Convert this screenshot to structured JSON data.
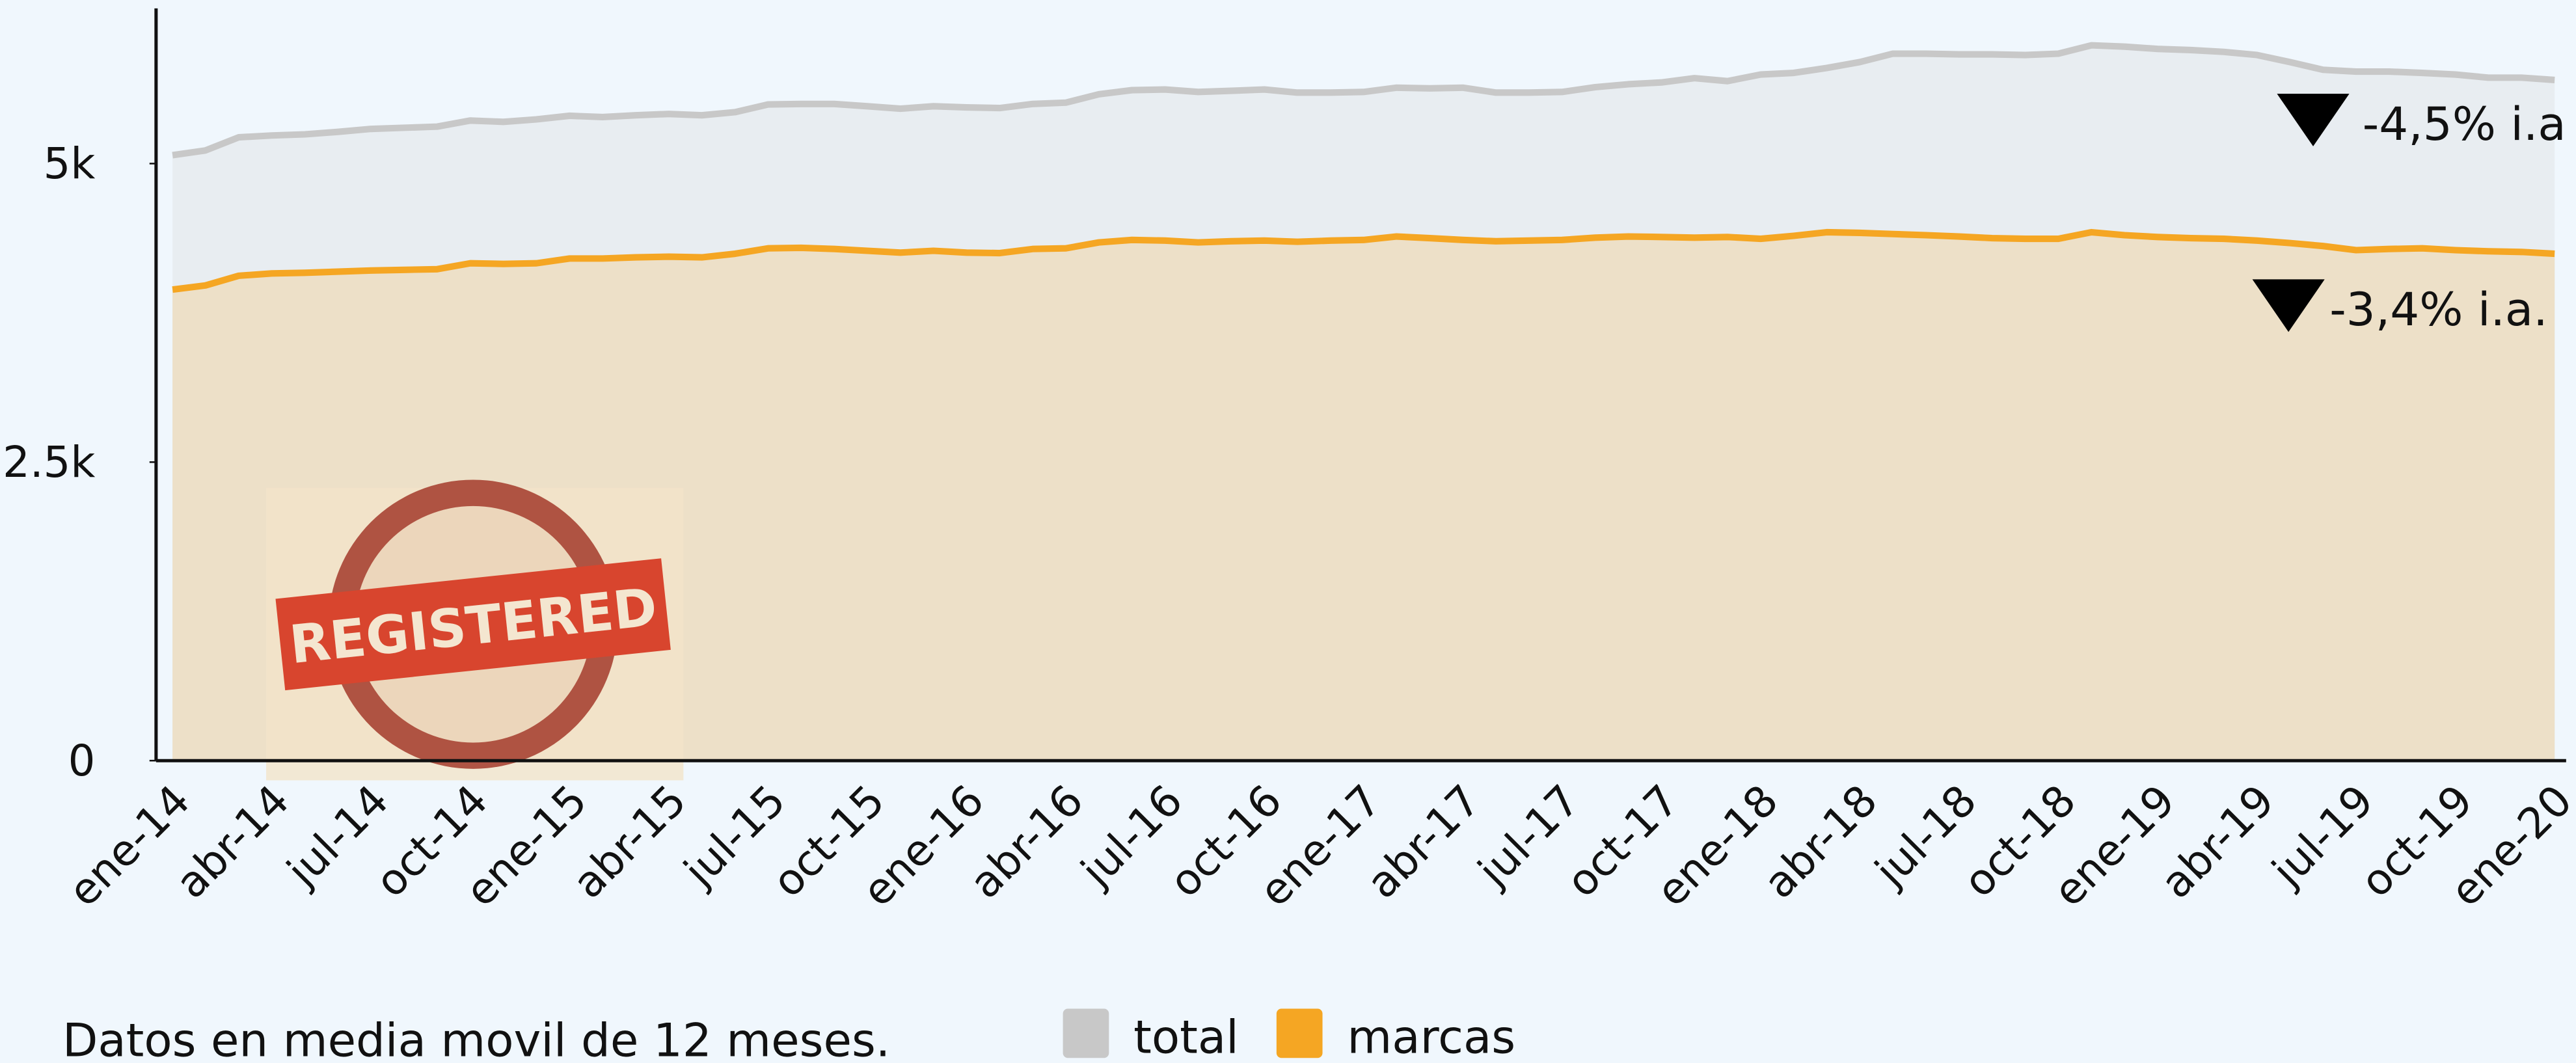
{
  "chart_data": {
    "type": "area",
    "categories": [
      "ene-14",
      null,
      null,
      "abr-14",
      null,
      null,
      "jul-14",
      null,
      null,
      "oct-14",
      null,
      null,
      "ene-15",
      null,
      null,
      "abr-15",
      null,
      null,
      "jul-15",
      null,
      null,
      "oct-15",
      null,
      null,
      "ene-16",
      null,
      null,
      "abr-16",
      null,
      null,
      "jul-16",
      null,
      null,
      "oct-16",
      null,
      null,
      "ene-17",
      null,
      null,
      "abr-17",
      null,
      null,
      "jul-17",
      null,
      null,
      "oct-17",
      null,
      null,
      "ene-18",
      null,
      null,
      "abr-18",
      null,
      null,
      "jul-18",
      null,
      null,
      "oct-18",
      null,
      null,
      "ene-19",
      null,
      null,
      "abr-19",
      null,
      null,
      "jul-19",
      null,
      null,
      "oct-19",
      null,
      null,
      "ene-20"
    ],
    "series": [
      {
        "name": "total",
        "color": "#c8c8c8",
        "fill": "#e8edf1",
        "values": [
          5070,
          5110,
          5220,
          5235,
          5245,
          5265,
          5290,
          5300,
          5310,
          5360,
          5350,
          5370,
          5400,
          5390,
          5405,
          5415,
          5405,
          5430,
          5495,
          5500,
          5500,
          5480,
          5460,
          5480,
          5470,
          5465,
          5500,
          5510,
          5580,
          5615,
          5620,
          5600,
          5610,
          5620,
          5595,
          5595,
          5600,
          5635,
          5630,
          5635,
          5595,
          5595,
          5600,
          5640,
          5665,
          5680,
          5715,
          5690,
          5745,
          5760,
          5800,
          5850,
          5920,
          5920,
          5915,
          5915,
          5910,
          5920,
          5990,
          5980,
          5960,
          5950,
          5935,
          5910,
          5850,
          5785,
          5770,
          5770,
          5760,
          5745,
          5720,
          5720,
          5700
        ]
      },
      {
        "name": "marcas",
        "color": "#f5a623",
        "fill": "#ede0c8",
        "values": [
          3945,
          3980,
          4060,
          4080,
          4085,
          4095,
          4105,
          4110,
          4115,
          4165,
          4160,
          4165,
          4205,
          4205,
          4215,
          4220,
          4215,
          4245,
          4290,
          4295,
          4285,
          4270,
          4255,
          4270,
          4255,
          4250,
          4285,
          4290,
          4340,
          4360,
          4355,
          4340,
          4350,
          4355,
          4345,
          4355,
          4360,
          4390,
          4375,
          4360,
          4350,
          4355,
          4360,
          4380,
          4390,
          4385,
          4380,
          4385,
          4370,
          4395,
          4425,
          4420,
          4410,
          4400,
          4390,
          4375,
          4370,
          4370,
          4425,
          4400,
          4385,
          4375,
          4370,
          4355,
          4335,
          4310,
          4275,
          4285,
          4290,
          4275,
          4265,
          4260,
          4245
        ]
      }
    ],
    "ylim": [
      0,
      6300
    ],
    "yticks": [
      0,
      {
        "value": 2500,
        "label": "2.5k"
      },
      {
        "value": 5000,
        "label": "5k"
      }
    ],
    "annotations": [
      "-4,5% i.a",
      "-3,4% i.a."
    ],
    "note": "Datos en media movil de 12 meses.",
    "watermark": "REGISTERED",
    "legend": "bottom"
  }
}
